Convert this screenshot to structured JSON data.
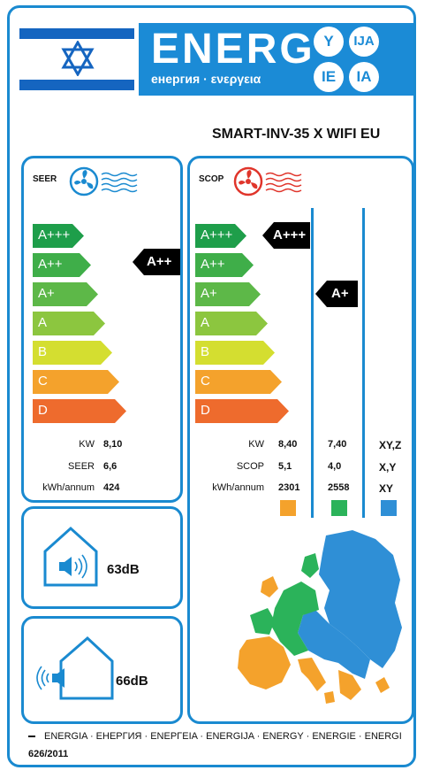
{
  "header": {
    "energ_title": "ENERG",
    "energ_subtitle": "енергия · ενεργεια",
    "lang_circles": [
      "Y",
      "IJA",
      "IE",
      "IA"
    ],
    "flag_icon": "israel-flag-icon"
  },
  "model": "SMART-INV-35 X WIFI EU",
  "classes": [
    "A+++",
    "A++",
    "A+",
    "A",
    "B",
    "C",
    "D"
  ],
  "class_colors": [
    "#1e9e4a",
    "#3fae49",
    "#5db848",
    "#8cc63f",
    "#d4de30",
    "#f4a22c",
    "#ee6b2d"
  ],
  "cooling": {
    "label": "SEER",
    "rating": "A++",
    "rows": [
      {
        "label": "KW",
        "value": "8,10"
      },
      {
        "label": "SEER",
        "value": "6,6"
      },
      {
        "label": "kWh/annum",
        "value": "424"
      }
    ]
  },
  "heating": {
    "label": "SCOP",
    "rating_warm": "A+++",
    "rating_average": "A+",
    "rows": [
      {
        "label": "KW",
        "v1": "8,40",
        "v2": "7,40",
        "v3": "XY,Z"
      },
      {
        "label": "SCOP",
        "v1": "5,1",
        "v2": "4,0",
        "v3": "X,Y"
      },
      {
        "label": "kWh/annum",
        "v1": "2301",
        "v2": "2558",
        "v3": "XY"
      }
    ],
    "zone_colors": [
      "#f4a22c",
      "#2bb35a",
      "#2f8fd6"
    ]
  },
  "noise": {
    "indoor_db": "63dB",
    "outdoor_db": "66dB"
  },
  "footer": {
    "languages": "ENERGIA · ЕНЕРГИЯ · ΕΝΕΡΓΕΙΑ · ENERGIJA · ENERGY · ENERGIE · ENERGI",
    "regulation": "626/2011"
  }
}
